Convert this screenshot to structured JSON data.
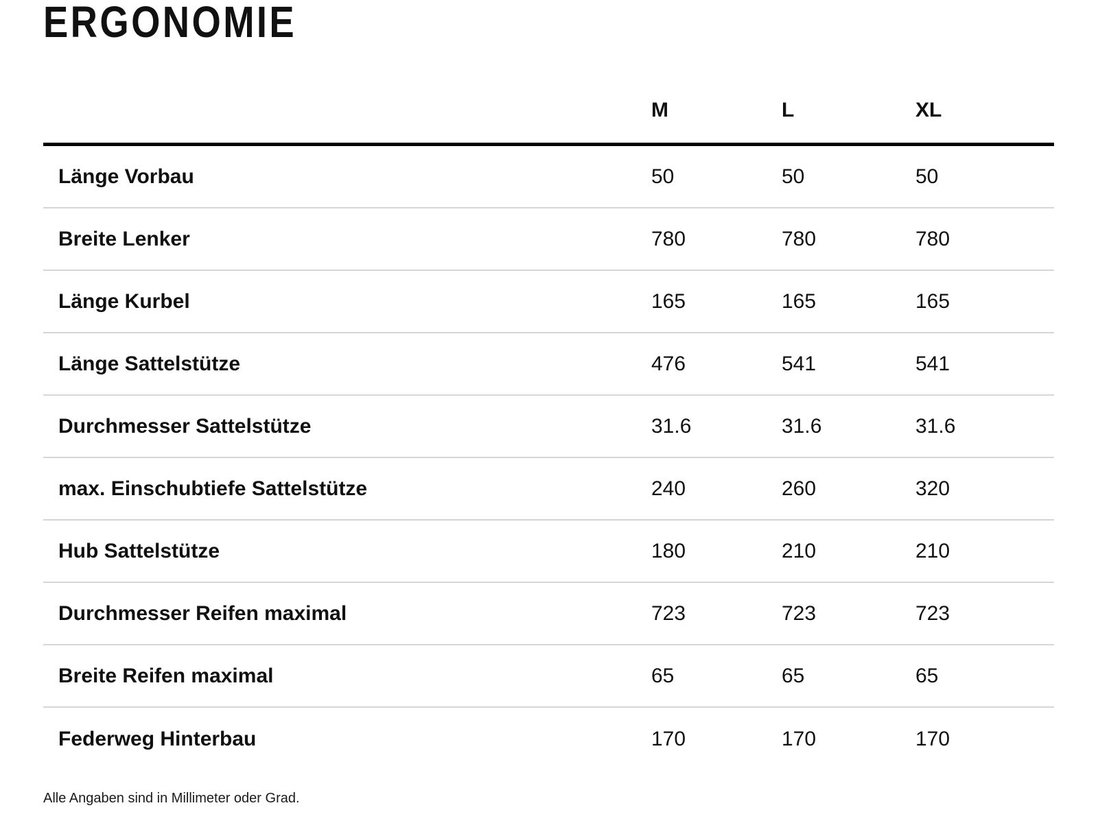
{
  "page": {
    "title": "ERGONOMIE",
    "footnote": "Alle Angaben sind in Millimeter oder Grad."
  },
  "colors": {
    "text": "#111111",
    "header_rule": "#000000",
    "row_divider": "#d6d6d6",
    "background": "#ffffff"
  },
  "table": {
    "columns": [
      "M",
      "L",
      "XL"
    ],
    "rows": [
      {
        "label": "Länge Vorbau",
        "values": [
          "50",
          "50",
          "50"
        ]
      },
      {
        "label": "Breite Lenker",
        "values": [
          "780",
          "780",
          "780"
        ]
      },
      {
        "label": "Länge Kurbel",
        "values": [
          "165",
          "165",
          "165"
        ]
      },
      {
        "label": "Länge Sattelstütze",
        "values": [
          "476",
          "541",
          "541"
        ]
      },
      {
        "label": "Durchmesser Sattelstütze",
        "values": [
          "31.6",
          "31.6",
          "31.6"
        ]
      },
      {
        "label": "max. Einschubtiefe Sattelstütze",
        "values": [
          "240",
          "260",
          "320"
        ]
      },
      {
        "label": "Hub Sattelstütze",
        "values": [
          "180",
          "210",
          "210"
        ]
      },
      {
        "label": "Durchmesser Reifen maximal",
        "values": [
          "723",
          "723",
          "723"
        ]
      },
      {
        "label": "Breite Reifen maximal",
        "values": [
          "65",
          "65",
          "65"
        ]
      },
      {
        "label": "Federweg Hinterbau",
        "values": [
          "170",
          "170",
          "170"
        ]
      }
    ]
  }
}
